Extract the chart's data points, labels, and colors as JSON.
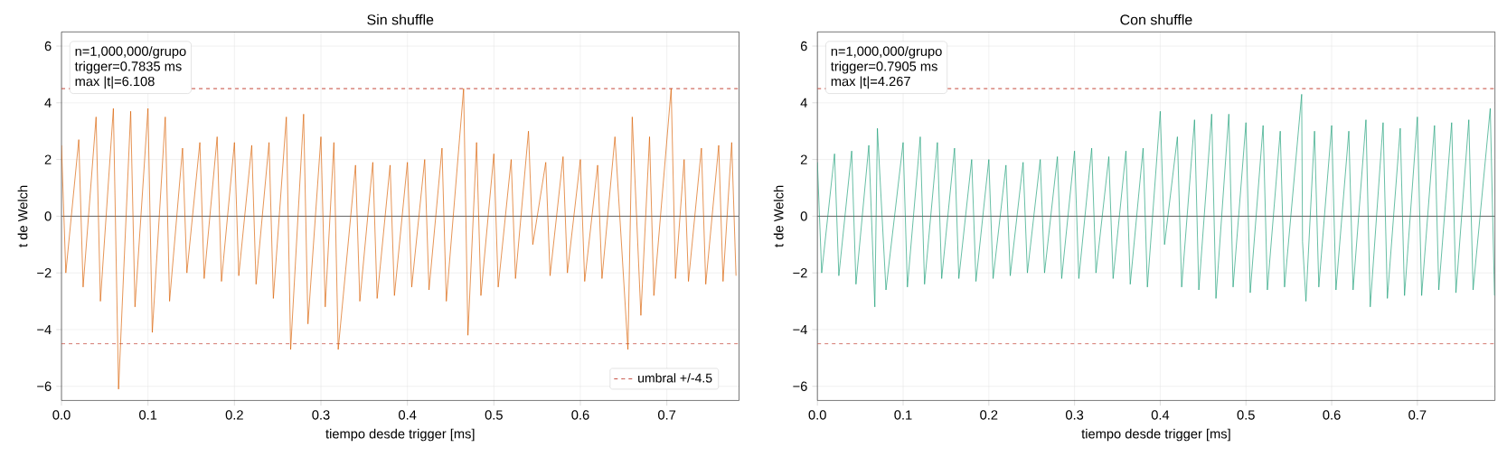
{
  "chart_data": [
    {
      "type": "line",
      "title": "Sin shuffle",
      "xlabel": "tiempo desde trigger [ms]",
      "ylabel": "t de Welch",
      "color": "#d95f02",
      "x": [
        0.0,
        0.005,
        0.02,
        0.025,
        0.04,
        0.045,
        0.06,
        0.066,
        0.08,
        0.085,
        0.1,
        0.105,
        0.12,
        0.125,
        0.14,
        0.145,
        0.16,
        0.165,
        0.18,
        0.185,
        0.2,
        0.205,
        0.22,
        0.225,
        0.24,
        0.245,
        0.26,
        0.265,
        0.28,
        0.285,
        0.3,
        0.305,
        0.315,
        0.32,
        0.34,
        0.345,
        0.36,
        0.365,
        0.38,
        0.385,
        0.4,
        0.405,
        0.42,
        0.425,
        0.44,
        0.445,
        0.465,
        0.47,
        0.48,
        0.485,
        0.5,
        0.505,
        0.52,
        0.525,
        0.54,
        0.545,
        0.56,
        0.565,
        0.58,
        0.585,
        0.6,
        0.605,
        0.62,
        0.625,
        0.64,
        0.655,
        0.66,
        0.67,
        0.68,
        0.685,
        0.705,
        0.71,
        0.72,
        0.725,
        0.74,
        0.745,
        0.76,
        0.765,
        0.775,
        0.78
      ],
      "values": [
        2.5,
        -2.0,
        2.7,
        -2.5,
        3.5,
        -3.0,
        3.8,
        -6.1,
        3.7,
        -3.2,
        3.8,
        -4.1,
        3.5,
        -3.0,
        2.4,
        -2.0,
        2.6,
        -2.2,
        2.8,
        -2.3,
        2.6,
        -2.1,
        2.5,
        -2.4,
        2.6,
        -2.9,
        3.5,
        -4.7,
        3.6,
        -3.8,
        2.8,
        -3.2,
        2.6,
        -4.7,
        1.8,
        -3.0,
        1.9,
        -2.9,
        1.8,
        -2.8,
        1.9,
        -2.5,
        2.0,
        -2.6,
        2.4,
        -3.0,
        4.5,
        -4.2,
        2.6,
        -2.8,
        2.2,
        -2.5,
        2.0,
        -2.2,
        3.0,
        -1.0,
        1.9,
        -2.1,
        2.1,
        -2.0,
        2.0,
        -2.3,
        1.8,
        -2.2,
        2.8,
        -4.7,
        3.5,
        -3.5,
        2.8,
        -2.8,
        4.5,
        -2.2,
        2.0,
        -2.3,
        2.4,
        -2.4,
        2.5,
        -2.3,
        2.6,
        -2.1
      ],
      "xlim": [
        0,
        0.7835
      ],
      "ylim": [
        -6.5,
        6.5
      ],
      "xticks": [
        {
          "value": 0,
          "label": "0.0"
        },
        0.1,
        0.2,
        0.3,
        0.4,
        0.5,
        0.6,
        0.7
      ],
      "yticks": [
        {
          "value": -6,
          "label": "−6"
        },
        {
          "value": -4,
          "label": "−4"
        },
        {
          "value": -2,
          "label": "−2"
        },
        0,
        2,
        4,
        6
      ],
      "grid": true,
      "legend": "bottom right",
      "ref_lines": [
        {
          "axis": "y",
          "value": 4.5,
          "label": "umbral +/-4.5",
          "color": "#c0392b",
          "line_style": "dashed"
        },
        {
          "axis": "y",
          "value": -4.5,
          "color": "#c0392b",
          "line_style": "dashed"
        },
        {
          "axis": "y",
          "value": 0,
          "color": "#555555",
          "line_style": "solid"
        }
      ],
      "annotations": [
        "n=1,000,000/grupo",
        "trigger=0.7835 ms",
        "max |t|=6.108"
      ]
    },
    {
      "type": "line",
      "title": "Con shuffle",
      "xlabel": "tiempo desde trigger [ms]",
      "ylabel": "t de Welch",
      "color": "#1b9e77",
      "x": [
        0.0,
        0.005,
        0.02,
        0.025,
        0.04,
        0.045,
        0.06,
        0.067,
        0.07,
        0.08,
        0.1,
        0.105,
        0.12,
        0.125,
        0.14,
        0.145,
        0.16,
        0.165,
        0.18,
        0.185,
        0.2,
        0.205,
        0.22,
        0.225,
        0.24,
        0.245,
        0.26,
        0.265,
        0.28,
        0.285,
        0.3,
        0.305,
        0.32,
        0.325,
        0.34,
        0.345,
        0.36,
        0.365,
        0.38,
        0.385,
        0.4,
        0.405,
        0.42,
        0.425,
        0.44,
        0.445,
        0.46,
        0.465,
        0.48,
        0.485,
        0.5,
        0.505,
        0.52,
        0.525,
        0.54,
        0.545,
        0.565,
        0.566,
        0.57,
        0.58,
        0.585,
        0.6,
        0.605,
        0.62,
        0.625,
        0.64,
        0.645,
        0.66,
        0.665,
        0.68,
        0.685,
        0.7,
        0.705,
        0.72,
        0.725,
        0.74,
        0.745,
        0.76,
        0.765,
        0.785,
        0.79
      ],
      "values": [
        1.9,
        -2.0,
        2.2,
        -2.1,
        2.3,
        -2.4,
        2.5,
        -3.2,
        3.1,
        -2.6,
        2.6,
        -2.5,
        2.8,
        -2.4,
        2.6,
        -2.2,
        2.4,
        -2.2,
        2.0,
        -2.3,
        2.0,
        -2.2,
        1.8,
        -2.1,
        1.9,
        -2.0,
        2.0,
        -2.0,
        2.1,
        -2.2,
        2.3,
        -2.2,
        2.4,
        -2.0,
        2.1,
        -2.2,
        2.3,
        -2.4,
        2.4,
        -2.5,
        3.7,
        -1.0,
        2.8,
        -2.5,
        3.4,
        -2.6,
        3.6,
        -2.9,
        3.6,
        -2.5,
        3.3,
        -2.7,
        3.2,
        -2.6,
        3.0,
        -2.5,
        4.3,
        -0.9,
        -3.0,
        3.0,
        -2.5,
        3.2,
        -2.6,
        3.0,
        -2.6,
        3.4,
        -3.2,
        3.3,
        -2.9,
        3.1,
        -2.8,
        3.5,
        -2.8,
        3.2,
        -2.6,
        3.3,
        -2.7,
        3.4,
        -2.6,
        3.8,
        -2.8
      ],
      "xlim": [
        0,
        0.7905
      ],
      "ylim": [
        -6.5,
        6.5
      ],
      "xticks": [
        {
          "value": 0,
          "label": "0.0"
        },
        0.1,
        0.2,
        0.3,
        0.4,
        0.5,
        0.6,
        0.7
      ],
      "yticks": [
        {
          "value": -6,
          "label": "−6"
        },
        {
          "value": -4,
          "label": "−4"
        },
        {
          "value": -2,
          "label": "−2"
        },
        0,
        2,
        4,
        6
      ],
      "grid": true,
      "ref_lines": [
        {
          "axis": "y",
          "value": 4.5,
          "color": "#c0392b",
          "line_style": "dashed"
        },
        {
          "axis": "y",
          "value": -4.5,
          "color": "#c0392b",
          "line_style": "dashed"
        },
        {
          "axis": "y",
          "value": 0,
          "color": "#555555",
          "line_style": "solid"
        }
      ],
      "annotations": [
        "n=1,000,000/grupo",
        "trigger=0.7905 ms",
        "max |t|=4.267"
      ]
    }
  ]
}
